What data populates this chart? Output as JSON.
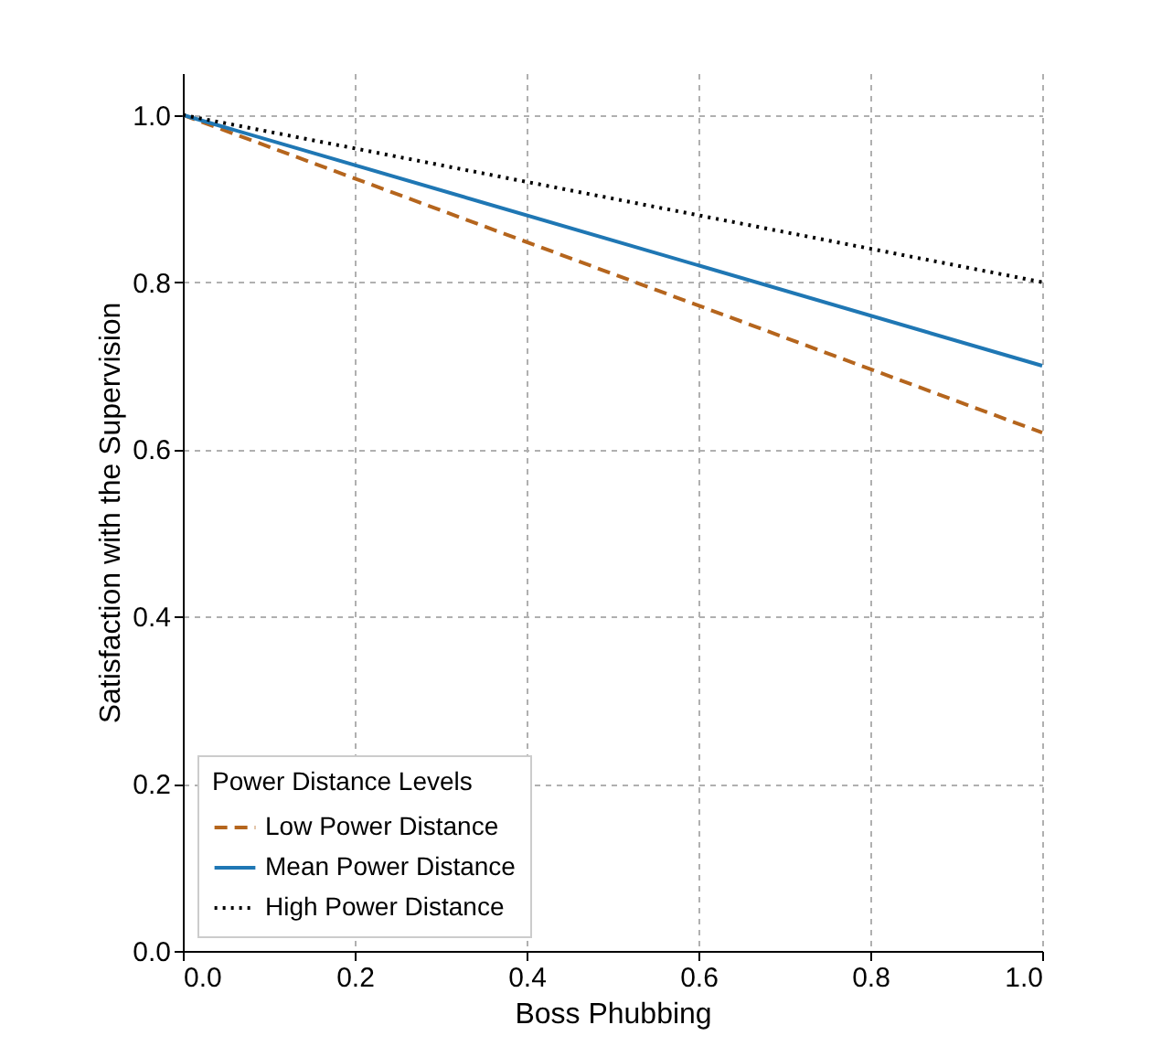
{
  "chart_data": {
    "type": "line",
    "xlabel": "Boss Phubbing",
    "ylabel": "Satisfaction with the Supervision",
    "legend_title": "Power Distance Levels",
    "x": [
      0,
      1
    ],
    "series": [
      {
        "name": "Low Power Distance",
        "color": "#b5651d",
        "line_style": "dashed",
        "values": [
          1.0,
          0.62
        ]
      },
      {
        "name": "Mean Power Distance",
        "color": "#1f77b4",
        "line_style": "solid",
        "values": [
          1.0,
          0.7
        ]
      },
      {
        "name": "High Power Distance",
        "color": "#000000",
        "line_style": "dotted",
        "values": [
          1.0,
          0.8
        ]
      }
    ],
    "xlim": [
      0,
      1
    ],
    "xticks": [
      {
        "value": 0,
        "label": "0.0"
      },
      0.2,
      0.4,
      0.6,
      0.8,
      {
        "value": 1,
        "label": "1.0"
      }
    ],
    "ylim": [
      0,
      1.05
    ],
    "yticks": [
      {
        "value": 0,
        "label": "0.0"
      },
      0.2,
      0.4,
      0.6,
      0.8,
      {
        "value": 1,
        "label": "1.0"
      }
    ],
    "grid": true,
    "legend": "bottom left",
    "marker": "none"
  }
}
